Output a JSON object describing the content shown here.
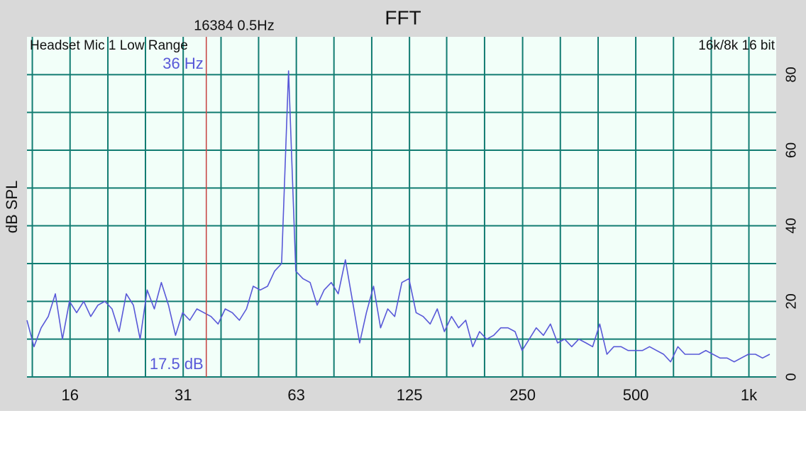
{
  "chart_data": {
    "type": "line",
    "title": "FFT",
    "subtitle": "16384  0.5Hz",
    "input_label": "Headset Mic 1 Low Range",
    "format_label": "16k/8k 16 bit",
    "y_label": "dB SPL",
    "log_x": true,
    "grid": true,
    "xlim": [
      12,
      1182
    ],
    "ylim": [
      0,
      90
    ],
    "xticks": [
      {
        "value": 15.625,
        "label": "16"
      },
      {
        "value": 31.25,
        "label": "31"
      },
      {
        "value": 62.5,
        "label": "63"
      },
      125,
      250,
      500,
      {
        "value": 1000,
        "label": "1k"
      }
    ],
    "x_minor_ticks": [
      12.4,
      19.7,
      24.8,
      39.4,
      49.6,
      78.7,
      99.2,
      157,
      198,
      315,
      397,
      630,
      794
    ],
    "yticks": [
      0,
      20,
      40,
      60,
      80
    ],
    "y_minor_ticks": [
      10,
      30,
      50,
      70
    ],
    "cursor": {
      "x": 36,
      "x_label": "36 Hz",
      "y": 17.5,
      "y_label": "17.5 dB",
      "color": "#c84a4a"
    },
    "series": [
      {
        "name": "Headset Mic 1 Low Range",
        "color": "#5858d8",
        "x": [
          12.0,
          12.53,
          13.09,
          13.67,
          14.28,
          14.91,
          15.57,
          16.27,
          16.99,
          17.74,
          18.53,
          19.35,
          20.21,
          21.11,
          22.05,
          23.03,
          24.0,
          25.06,
          26.18,
          27.34,
          28.56,
          29.82,
          31.14,
          32.54,
          33.98,
          35.48,
          37.06,
          38.7,
          40.42,
          42.22,
          44.1,
          46.06,
          48.0,
          50.1,
          52.4,
          54.7,
          57.1,
          59.6,
          62.3,
          65.1,
          68.0,
          71.0,
          74.1,
          77.4,
          80.8,
          84.4,
          88.2,
          92.1,
          96.0,
          100.3,
          104.7,
          109.4,
          114.2,
          119.3,
          124.6,
          130.2,
          135.9,
          141.9,
          148.2,
          154.8,
          161.7,
          168.9,
          176.4,
          184.2,
          192,
          200.5,
          209.4,
          218.7,
          228.5,
          238.6,
          249.2,
          260.3,
          271.8,
          283.9,
          296.5,
          309.7,
          323.4,
          337.8,
          352.8,
          368.5,
          384,
          401,
          419,
          437,
          457,
          477,
          498,
          521,
          544,
          568,
          593,
          619,
          647,
          676,
          706,
          737,
          768,
          802,
          838,
          875,
          914,
          954,
          997,
          1041,
          1087,
          1136
        ],
        "values": [
          15,
          8,
          13,
          16,
          22,
          10,
          20,
          17,
          20,
          16,
          19,
          20,
          18,
          12,
          22,
          19,
          10,
          23,
          18,
          25,
          19,
          11,
          17,
          15,
          18,
          17,
          16,
          14,
          18,
          17,
          15,
          18,
          24,
          23,
          24,
          28,
          30,
          81,
          28,
          26,
          25,
          19,
          23,
          25,
          22,
          31,
          20,
          9,
          17,
          24,
          13,
          18,
          16,
          25,
          26,
          17,
          16,
          14,
          18,
          12,
          16,
          13,
          15,
          8,
          12,
          10,
          11,
          13,
          13,
          12,
          7,
          10,
          13,
          11,
          14,
          9,
          10,
          8,
          10,
          9,
          8,
          14,
          6,
          8,
          8,
          7,
          7,
          7,
          8,
          7,
          6,
          4,
          8,
          6,
          6,
          6,
          7,
          6,
          5,
          5,
          4,
          5,
          6,
          6,
          5,
          6
        ]
      }
    ]
  }
}
